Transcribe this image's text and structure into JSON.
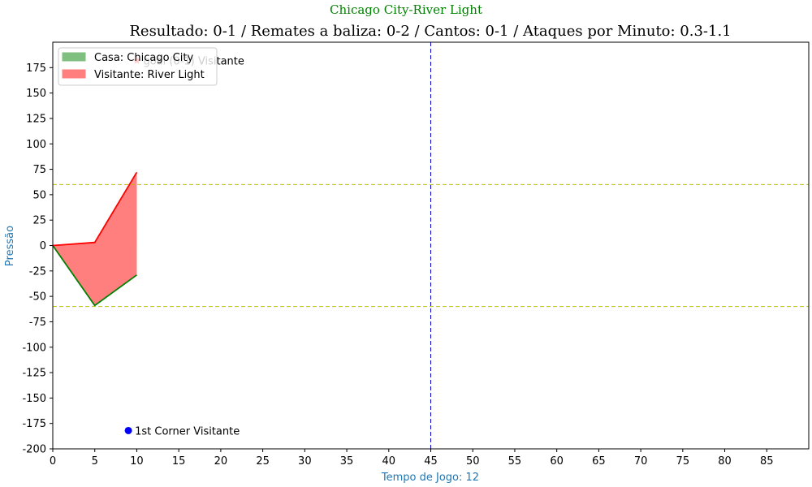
{
  "header": {
    "match": "Chicago City-River Light",
    "stats": "Resultado: 0-1 / Remates a baliza: 0-2 / Cantos: 0-1 / Ataques por Minuto: 0.3-1.1"
  },
  "colors": {
    "match_title": "#008000",
    "axis_label": "#1f77b4",
    "home": "#008000",
    "home_fill": "#7fbf7f",
    "away": "#ff0000",
    "away_fill": "#ff7f7f",
    "threshold": "#bfbf00",
    "halftime": "#0000cc",
    "corner": "#0000ff",
    "goal": "#ff0000"
  },
  "chart_data": {
    "type": "area",
    "xlabel": "Tempo de Jogo: 12",
    "ylabel": "Pressão",
    "xlim": [
      0,
      90
    ],
    "ylim": [
      -200,
      200
    ],
    "xticks": [
      0,
      5,
      10,
      15,
      20,
      25,
      30,
      35,
      40,
      45,
      50,
      55,
      60,
      65,
      70,
      75,
      80,
      85
    ],
    "yticks": [
      -200,
      -175,
      -150,
      -125,
      -100,
      -75,
      -50,
      -25,
      0,
      25,
      50,
      75,
      100,
      125,
      150,
      175
    ],
    "grid": false,
    "legend_position": "top-left",
    "series": [
      {
        "name": "Casa: Chicago City",
        "x": [
          0,
          5,
          10
        ],
        "values": [
          0,
          -59,
          -29
        ]
      },
      {
        "name": "Visitante: River Light",
        "x": [
          0,
          5,
          10
        ],
        "values": [
          0,
          3,
          72
        ]
      }
    ],
    "reference_lines": [
      {
        "axis": "y",
        "value": 60,
        "style": "dashed"
      },
      {
        "axis": "y",
        "value": -60,
        "style": "dashed"
      },
      {
        "axis": "x",
        "value": 45,
        "style": "dashed"
      }
    ],
    "annotations": [
      {
        "marker": "star",
        "x": 10,
        "y": 182,
        "text": "goal (0-1) Visitante"
      },
      {
        "marker": "circle",
        "x": 9,
        "y": -182,
        "text": "1st Corner Visitante"
      }
    ]
  }
}
